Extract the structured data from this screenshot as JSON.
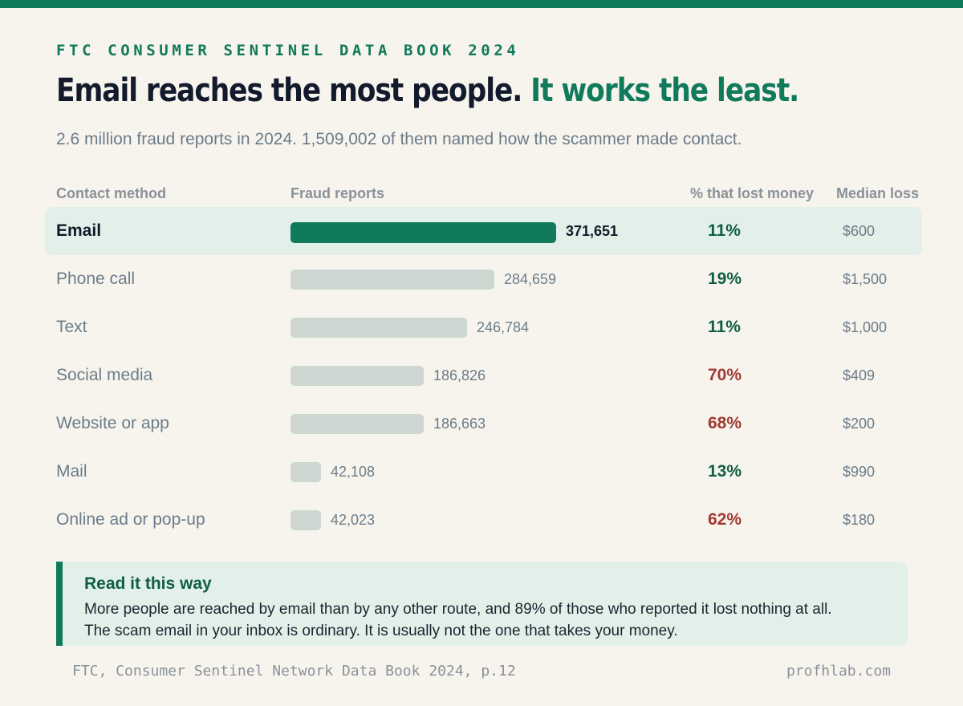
{
  "eyebrow": "FTC CONSUMER SENTINEL DATA BOOK 2024",
  "headline": {
    "main": "Email reaches the most people.",
    "accent": "It works the least."
  },
  "subtitle": "2.6 million fraud reports in 2024. 1,509,002 of them named how the scammer made contact.",
  "columns": {
    "method": "Contact method",
    "reports": "Fraud reports",
    "pct": "% that lost money",
    "loss": "Median loss"
  },
  "colors": {
    "accent": "#117a5a",
    "bar_default": "#ced6d1",
    "highlight_bg": "#e3f0e9",
    "pct_low": "#0f5e46",
    "pct_high": "#a23a33"
  },
  "chart_data": {
    "type": "bar",
    "orientation": "horizontal",
    "title": "Email reaches the most people. It works the least.",
    "categories": [
      "Email",
      "Phone call",
      "Text",
      "Social media",
      "Website or app",
      "Mail",
      "Online ad or pop-up"
    ],
    "series": [
      {
        "name": "Fraud reports",
        "values": [
          371651,
          284659,
          246784,
          186826,
          186663,
          42108,
          42023
        ]
      }
    ],
    "value_labels": [
      "371,651",
      "284,659",
      "246,784",
      "186,826",
      "186,663",
      "42,108",
      "42,023"
    ],
    "pct_lost_money": [
      "11%",
      "19%",
      "11%",
      "70%",
      "68%",
      "13%",
      "62%"
    ],
    "pct_lost_money_level": [
      "low",
      "low",
      "low",
      "high",
      "high",
      "low",
      "high"
    ],
    "median_loss": [
      "$600",
      "$1,500",
      "$1,000",
      "$409",
      "$200",
      "$990",
      "$180"
    ],
    "highlighted": "Email",
    "xlim": [
      0,
      371651
    ],
    "grid": false,
    "legend": "none"
  },
  "callout": {
    "title": "Read it this way",
    "body": "More people are reached by email than by any other route, and 89% of those who reported it lost nothing at all. The scam email in your inbox is ordinary. It is usually not the one that takes your money."
  },
  "footer": {
    "source": "FTC, Consumer Sentinel Network Data Book 2024, p.12",
    "site": "profhlab.com"
  }
}
